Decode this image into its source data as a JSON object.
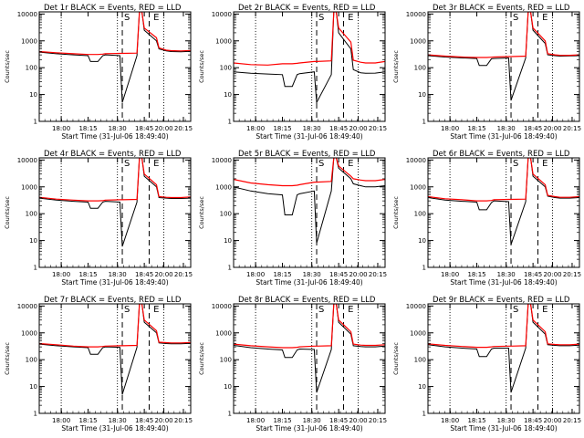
{
  "figure": {
    "common": {
      "xlabel": "Start Time (31-Jul-06 18:49:40)",
      "ylabel": "Counts/sec",
      "xtick_labels": [
        "18:00",
        "18:15",
        "18:30",
        "18:45",
        "20:00",
        "20:15"
      ],
      "ytick_labels": [
        "1",
        "10",
        "100",
        "1000",
        "10000"
      ],
      "markers": [
        "S",
        "E"
      ]
    }
  },
  "chart_data": [
    {
      "type": "line",
      "title": "Det 1r BLACK = Events, RED = LLD",
      "xlabel": "Start Time (31-Jul-06 18:49:40)",
      "ylabel": "Counts/sec",
      "yscale": "log",
      "ylim": [
        1,
        12000
      ],
      "x_ticks": [
        "18:00",
        "18:15",
        "18:30",
        "18:45",
        "20:00",
        "20:15"
      ],
      "x": [
        0,
        7,
        14,
        20,
        21,
        24,
        26,
        27,
        33,
        34,
        40,
        41,
        42,
        43,
        48,
        49,
        52,
        54,
        58,
        62
      ],
      "series": [
        {
          "name": "Events",
          "color": "#000000",
          "values": [
            380,
            330,
            300,
            280,
            170,
            170,
            280,
            300,
            280,
            5,
            280,
            12000,
            12000,
            2500,
            1000,
            500,
            420,
            400,
            390,
            410
          ]
        },
        {
          "name": "LLD",
          "color": "#ff0000",
          "values": [
            400,
            360,
            330,
            310,
            310,
            310,
            320,
            330,
            340,
            340,
            350,
            12000,
            12000,
            3000,
            1300,
            550,
            450,
            430,
            420,
            440
          ]
        }
      ],
      "dotted_x": [
        9,
        32,
        51
      ],
      "dashed_x": [
        34,
        45
      ],
      "marker_labels": [
        "S",
        "E"
      ]
    },
    {
      "type": "line",
      "title": "Det 2r BLACK = Events, RED = LLD",
      "xlabel": "Start Time (31-Jul-06 18:49:40)",
      "ylabel": "Counts/sec",
      "yscale": "log",
      "ylim": [
        1,
        12000
      ],
      "x_ticks": [
        "18:00",
        "18:15",
        "18:30",
        "18:45",
        "20:00",
        "20:15"
      ],
      "x": [
        0,
        7,
        14,
        20,
        21,
        24,
        26,
        27,
        33,
        34,
        40,
        41,
        42,
        43,
        48,
        49,
        52,
        54,
        58,
        62
      ],
      "series": [
        {
          "name": "Events",
          "color": "#000000",
          "values": [
            70,
            62,
            58,
            55,
            20,
            20,
            55,
            60,
            70,
            5,
            55,
            12000,
            12000,
            2000,
            500,
            85,
            65,
            62,
            63,
            70
          ]
        },
        {
          "name": "LLD",
          "color": "#ff0000",
          "values": [
            150,
            130,
            125,
            140,
            140,
            140,
            145,
            150,
            170,
            170,
            180,
            12000,
            12000,
            3000,
            900,
            190,
            160,
            150,
            150,
            170
          ]
        }
      ],
      "dotted_x": [
        9,
        32,
        51
      ],
      "dashed_x": [
        34,
        45
      ],
      "marker_labels": [
        "S",
        "E"
      ]
    },
    {
      "type": "line",
      "title": "Det 3r BLACK = Events, RED = LLD",
      "xlabel": "Start Time (31-Jul-06 18:49:40)",
      "ylabel": "Counts/sec",
      "yscale": "log",
      "ylim": [
        1,
        12000
      ],
      "x_ticks": [
        "18:00",
        "18:15",
        "18:30",
        "18:45",
        "20:00",
        "20:15"
      ],
      "x": [
        0,
        7,
        14,
        20,
        21,
        24,
        26,
        27,
        33,
        34,
        40,
        41,
        42,
        43,
        48,
        49,
        52,
        54,
        58,
        62
      ],
      "series": [
        {
          "name": "Events",
          "color": "#000000",
          "values": [
            280,
            250,
            230,
            220,
            120,
            120,
            215,
            220,
            230,
            6,
            230,
            12000,
            12000,
            2500,
            800,
            300,
            280,
            270,
            275,
            280
          ]
        },
        {
          "name": "LLD",
          "color": "#ff0000",
          "values": [
            300,
            270,
            250,
            240,
            240,
            240,
            245,
            250,
            260,
            260,
            270,
            12000,
            12000,
            3000,
            1000,
            330,
            300,
            290,
            290,
            300
          ]
        }
      ],
      "dotted_x": [
        9,
        32,
        51
      ],
      "dashed_x": [
        34,
        45
      ],
      "marker_labels": [
        "S",
        "E"
      ]
    },
    {
      "type": "line",
      "title": "Det 4r BLACK = Events, RED = LLD",
      "xlabel": "Start Time (31-Jul-06 18:49:40)",
      "ylabel": "Counts/sec",
      "yscale": "log",
      "ylim": [
        1,
        12000
      ],
      "x_ticks": [
        "18:00",
        "18:15",
        "18:30",
        "18:45",
        "20:00",
        "20:15"
      ],
      "x": [
        0,
        7,
        14,
        20,
        21,
        24,
        26,
        27,
        33,
        34,
        40,
        41,
        42,
        43,
        48,
        49,
        52,
        54,
        58,
        62
      ],
      "series": [
        {
          "name": "Events",
          "color": "#000000",
          "values": [
            380,
            320,
            290,
            270,
            160,
            160,
            270,
            290,
            270,
            6,
            270,
            12000,
            12000,
            2500,
            1000,
            400,
            380,
            370,
            370,
            380
          ]
        },
        {
          "name": "LLD",
          "color": "#ff0000",
          "values": [
            410,
            350,
            320,
            300,
            300,
            300,
            305,
            320,
            330,
            330,
            340,
            12000,
            12000,
            3000,
            1200,
            430,
            410,
            400,
            400,
            420
          ]
        }
      ],
      "dotted_x": [
        9,
        32,
        51
      ],
      "dashed_x": [
        34,
        45
      ],
      "marker_labels": [
        "S",
        "E"
      ]
    },
    {
      "type": "line",
      "title": "Det 5r BLACK = Events, RED = LLD",
      "xlabel": "Start Time (31-Jul-06 18:49:40)",
      "ylabel": "Counts/sec",
      "yscale": "log",
      "ylim": [
        1,
        12000
      ],
      "x_ticks": [
        "18:00",
        "18:15",
        "18:30",
        "18:45",
        "20:00",
        "20:15"
      ],
      "x": [
        0,
        7,
        14,
        20,
        21,
        24,
        26,
        27,
        33,
        34,
        40,
        41,
        42,
        43,
        48,
        49,
        52,
        54,
        58,
        62
      ],
      "series": [
        {
          "name": "Events",
          "color": "#000000",
          "values": [
            1000,
            700,
            560,
            500,
            90,
            90,
            500,
            550,
            700,
            8,
            700,
            12000,
            12000,
            5000,
            2000,
            1300,
            1100,
            1000,
            1000,
            1100
          ]
        },
        {
          "name": "LLD",
          "color": "#ff0000",
          "values": [
            1900,
            1400,
            1200,
            1100,
            1100,
            1100,
            1150,
            1200,
            1500,
            1500,
            1600,
            12000,
            12000,
            6000,
            2500,
            2000,
            1800,
            1700,
            1700,
            1900
          ]
        }
      ],
      "dotted_x": [
        9,
        32,
        51
      ],
      "dashed_x": [
        34,
        45
      ],
      "marker_labels": [
        "S",
        "E"
      ]
    },
    {
      "type": "line",
      "title": "Det 6r BLACK = Events, RED = LLD",
      "xlabel": "Start Time (31-Jul-06 18:49:40)",
      "ylabel": "Counts/sec",
      "yscale": "log",
      "ylim": [
        1,
        12000
      ],
      "x_ticks": [
        "18:00",
        "18:15",
        "18:30",
        "18:45",
        "20:00",
        "20:15"
      ],
      "x": [
        0,
        7,
        14,
        20,
        21,
        24,
        26,
        27,
        33,
        34,
        40,
        41,
        42,
        43,
        48,
        49,
        52,
        54,
        58,
        62
      ],
      "series": [
        {
          "name": "Events",
          "color": "#000000",
          "values": [
            400,
            320,
            290,
            270,
            140,
            140,
            260,
            300,
            280,
            7,
            280,
            12000,
            12000,
            2500,
            1000,
            450,
            400,
            380,
            380,
            400
          ]
        },
        {
          "name": "LLD",
          "color": "#ff0000",
          "values": [
            430,
            360,
            330,
            300,
            300,
            300,
            310,
            330,
            340,
            340,
            350,
            12000,
            12000,
            3000,
            1200,
            480,
            430,
            410,
            410,
            430
          ]
        }
      ],
      "dotted_x": [
        9,
        32,
        51
      ],
      "dashed_x": [
        34,
        45
      ],
      "marker_labels": [
        "S",
        "E"
      ]
    },
    {
      "type": "line",
      "title": "Det 7r BLACK = Events, RED = LLD",
      "xlabel": "Start Time (31-Jul-06 18:49:40)",
      "ylabel": "Counts/sec",
      "yscale": "log",
      "ylim": [
        1,
        12000
      ],
      "x_ticks": [
        "18:00",
        "18:15",
        "18:30",
        "18:45",
        "20:00",
        "20:15"
      ],
      "x": [
        0,
        7,
        14,
        20,
        21,
        24,
        26,
        27,
        33,
        34,
        40,
        41,
        42,
        43,
        48,
        49,
        52,
        54,
        58,
        62
      ],
      "series": [
        {
          "name": "Events",
          "color": "#000000",
          "values": [
            380,
            330,
            300,
            280,
            160,
            160,
            280,
            300,
            290,
            5,
            290,
            12000,
            12000,
            2500,
            1000,
            420,
            400,
            390,
            390,
            410
          ]
        },
        {
          "name": "LLD",
          "color": "#ff0000",
          "values": [
            400,
            360,
            320,
            300,
            300,
            300,
            310,
            320,
            330,
            330,
            340,
            12000,
            12000,
            3000,
            1200,
            450,
            430,
            420,
            420,
            440
          ]
        }
      ],
      "dotted_x": [
        9,
        32,
        51
      ],
      "dashed_x": [
        34,
        45
      ],
      "marker_labels": [
        "S",
        "E"
      ]
    },
    {
      "type": "line",
      "title": "Det 8r BLACK = Events, RED = LLD",
      "xlabel": "Start Time (31-Jul-06 18:49:40)",
      "ylabel": "Counts/sec",
      "yscale": "log",
      "ylim": [
        1,
        12000
      ],
      "x_ticks": [
        "18:00",
        "18:15",
        "18:30",
        "18:45",
        "20:00",
        "20:15"
      ],
      "x": [
        0,
        7,
        14,
        20,
        21,
        24,
        26,
        27,
        33,
        34,
        40,
        41,
        42,
        43,
        48,
        49,
        52,
        54,
        58,
        62
      ],
      "series": [
        {
          "name": "Events",
          "color": "#000000",
          "values": [
            340,
            280,
            250,
            230,
            120,
            120,
            230,
            250,
            240,
            6,
            240,
            12000,
            12000,
            2500,
            900,
            330,
            310,
            300,
            300,
            320
          ]
        },
        {
          "name": "LLD",
          "color": "#ff0000",
          "values": [
            380,
            330,
            300,
            280,
            280,
            280,
            290,
            300,
            320,
            320,
            330,
            12000,
            12000,
            3000,
            1100,
            380,
            350,
            340,
            340,
            360
          ]
        }
      ],
      "dotted_x": [
        9,
        32,
        51
      ],
      "dashed_x": [
        34,
        45
      ],
      "marker_labels": [
        "S",
        "E"
      ]
    },
    {
      "type": "line",
      "title": "Det 9r BLACK = Events, RED = LLD",
      "xlabel": "Start Time (31-Jul-06 18:49:40)",
      "ylabel": "Counts/sec",
      "yscale": "log",
      "ylim": [
        1,
        12000
      ],
      "x_ticks": [
        "18:00",
        "18:15",
        "18:30",
        "18:45",
        "20:00",
        "20:15"
      ],
      "x": [
        0,
        7,
        14,
        20,
        21,
        24,
        26,
        27,
        33,
        34,
        40,
        41,
        42,
        43,
        48,
        49,
        52,
        54,
        58,
        62
      ],
      "series": [
        {
          "name": "Events",
          "color": "#000000",
          "values": [
            360,
            300,
            270,
            250,
            130,
            130,
            250,
            270,
            270,
            6,
            270,
            12000,
            12000,
            2500,
            900,
            360,
            340,
            330,
            330,
            350
          ]
        },
        {
          "name": "LLD",
          "color": "#ff0000",
          "values": [
            390,
            340,
            310,
            290,
            290,
            290,
            300,
            310,
            320,
            320,
            330,
            12000,
            12000,
            3000,
            1100,
            390,
            370,
            360,
            360,
            380
          ]
        }
      ],
      "dotted_x": [
        9,
        32,
        51
      ],
      "dashed_x": [
        34,
        45
      ],
      "marker_labels": [
        "S",
        "E"
      ]
    }
  ]
}
